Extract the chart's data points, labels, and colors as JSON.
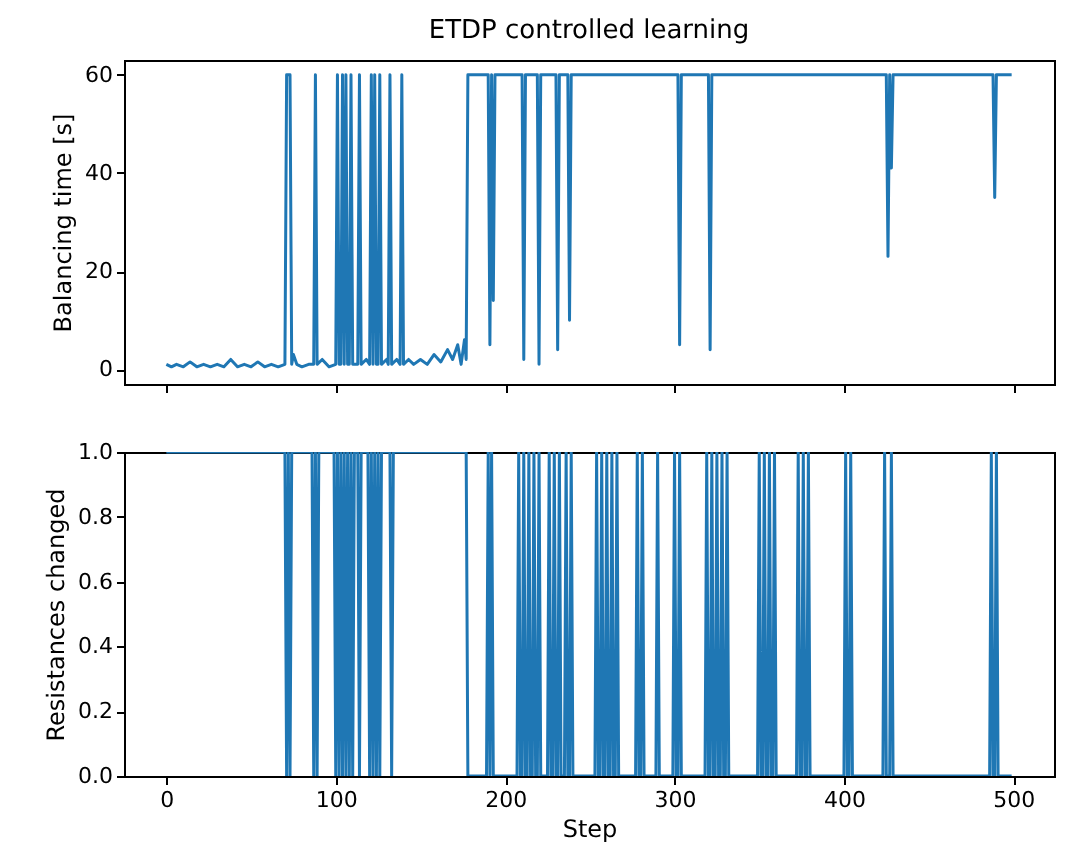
{
  "chart_data": [
    {
      "type": "line",
      "title": "ETDP controlled learning",
      "ylabel": "Balancing time [s]",
      "xlim": [
        -25,
        524
      ],
      "xticks": [
        0,
        100,
        200,
        300,
        400,
        500
      ],
      "ylim": [
        -3,
        63
      ],
      "yticks": [
        0,
        20,
        40,
        60
      ],
      "grid": false,
      "tick_labels": "y",
      "series": [
        {
          "color": "#1f77b4",
          "x": [
            0,
            3,
            6,
            10,
            14,
            18,
            22,
            26,
            30,
            34,
            38,
            42,
            46,
            50,
            54,
            58,
            62,
            66,
            70,
            71,
            72,
            73,
            74,
            75,
            77,
            80,
            84,
            87,
            88,
            89,
            92,
            96,
            100,
            101,
            102,
            103,
            104,
            105,
            106,
            107,
            108,
            109,
            110,
            113,
            114,
            115,
            118,
            120,
            121,
            122,
            123,
            124,
            125,
            126,
            127,
            130,
            131,
            132,
            133,
            136,
            138,
            139,
            140,
            143,
            146,
            150,
            154,
            158,
            162,
            166,
            169,
            172,
            174,
            176,
            177,
            178,
            190,
            191,
            192,
            193,
            194,
            210,
            211,
            212,
            219,
            220,
            221,
            230,
            231,
            232,
            237,
            238,
            239,
            302,
            303,
            304,
            320,
            321,
            322,
            425,
            426,
            427,
            428,
            429,
            488,
            489,
            490,
            499
          ],
          "values": [
            1,
            0.5,
            1,
            0.5,
            1.5,
            0.5,
            1,
            0.5,
            1,
            0.5,
            2,
            0.5,
            1,
            0.5,
            1.5,
            0.5,
            1,
            0.5,
            1,
            60,
            60,
            60,
            1,
            3,
            1,
            0.5,
            1,
            1,
            60,
            1,
            2,
            0.5,
            1,
            60,
            1,
            1,
            60,
            1,
            60,
            1,
            1,
            60,
            1,
            1,
            60,
            1,
            2,
            1,
            60,
            1,
            60,
            1,
            1,
            60,
            1,
            2,
            1,
            60,
            1,
            2,
            1,
            60,
            1,
            2,
            1,
            2,
            1,
            3,
            1.5,
            4,
            2,
            5,
            1,
            6,
            2,
            60,
            60,
            5,
            60,
            14,
            60,
            60,
            2,
            60,
            60,
            1,
            60,
            60,
            4,
            60,
            60,
            10,
            60,
            60,
            5,
            60,
            60,
            4,
            60,
            60,
            23,
            60,
            41,
            60,
            60,
            35,
            60,
            60
          ]
        }
      ]
    },
    {
      "type": "line",
      "xlabel": "Step",
      "ylabel": "Resistances changed",
      "xlim": [
        -25,
        524
      ],
      "xticks": [
        0,
        100,
        200,
        300,
        400,
        500
      ],
      "ylim": [
        0,
        1
      ],
      "yticks": [
        {
          "value": 0,
          "label": "0.0"
        },
        {
          "value": 0.2,
          "label": "0.2"
        },
        {
          "value": 0.4,
          "label": "0.4"
        },
        {
          "value": 0.6,
          "label": "0.6"
        },
        {
          "value": 0.8,
          "label": "0.8"
        },
        {
          "value": 1,
          "label": "1.0"
        }
      ],
      "grid": false,
      "series": [
        {
          "color": "#1f77b4",
          "x": [
            0,
            70,
            71,
            72,
            73,
            74,
            86,
            87,
            88,
            89,
            90,
            99,
            100,
            101,
            102,
            103,
            104,
            105,
            106,
            107,
            108,
            109,
            110,
            111,
            113,
            114,
            115,
            119,
            120,
            121,
            122,
            123,
            124,
            125,
            126,
            127,
            132,
            133,
            134,
            177,
            178,
            189,
            190,
            191,
            192,
            193,
            207,
            208,
            209,
            210,
            211,
            212,
            213,
            214,
            215,
            216,
            217,
            218,
            219,
            220,
            221,
            225,
            226,
            227,
            228,
            229,
            230,
            231,
            232,
            233,
            235,
            236,
            237,
            238,
            239,
            240,
            253,
            254,
            255,
            256,
            257,
            258,
            259,
            260,
            261,
            262,
            263,
            264,
            265,
            266,
            267,
            277,
            278,
            279,
            280,
            281,
            282,
            289,
            290,
            291,
            299,
            300,
            301,
            302,
            303,
            304,
            318,
            319,
            320,
            321,
            322,
            323,
            324,
            325,
            326,
            327,
            328,
            329,
            330,
            331,
            332,
            349,
            350,
            351,
            352,
            353,
            354,
            355,
            356,
            357,
            358,
            359,
            360,
            372,
            373,
            374,
            375,
            376,
            377,
            378,
            379,
            380,
            400,
            401,
            402,
            403,
            404,
            405,
            423,
            424,
            425,
            427,
            428,
            429,
            486,
            487,
            488,
            489,
            490,
            491,
            499
          ],
          "values": [
            1,
            1,
            0,
            1,
            0,
            1,
            1,
            0,
            1,
            0,
            1,
            1,
            0,
            1,
            0,
            1,
            0,
            1,
            0,
            1,
            0,
            1,
            0,
            1,
            1,
            0,
            1,
            1,
            0,
            1,
            0,
            1,
            0,
            1,
            0,
            1,
            1,
            0,
            1,
            1,
            0,
            0,
            1,
            0,
            1,
            0,
            0,
            1,
            0,
            0,
            1,
            0,
            0,
            1,
            0,
            0,
            1,
            0,
            0,
            1,
            0,
            0,
            1,
            0,
            0,
            1,
            0,
            0,
            1,
            0,
            0,
            1,
            0,
            0,
            1,
            0,
            0,
            1,
            0,
            0,
            1,
            0,
            0,
            1,
            0,
            0,
            1,
            0,
            0,
            1,
            0,
            0,
            1,
            0,
            0,
            1,
            0,
            0,
            1,
            0,
            0,
            1,
            0,
            0,
            1,
            0,
            0,
            1,
            0,
            0,
            1,
            0,
            0,
            1,
            0,
            0,
            1,
            0,
            0,
            1,
            0,
            0,
            1,
            0,
            0,
            1,
            0,
            0,
            1,
            0,
            0,
            1,
            0,
            0,
            1,
            0,
            0,
            1,
            0,
            0,
            1,
            0,
            0,
            1,
            0,
            0,
            1,
            0,
            0,
            1,
            0,
            0,
            1,
            0,
            0,
            1,
            0,
            0,
            1,
            0,
            0
          ]
        }
      ]
    }
  ]
}
